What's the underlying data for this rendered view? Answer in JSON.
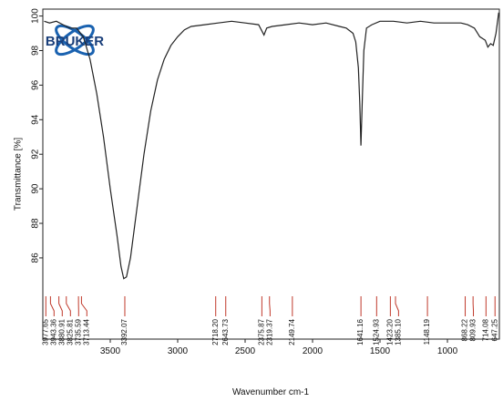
{
  "chart_data": {
    "type": "line",
    "logo": "BRUKER",
    "y_label": "Transmittance [%]",
    "x_label": "Wavenumber cm-1",
    "xlim": [
      4000,
      615
    ],
    "ylim": [
      81.3,
      100.4
    ],
    "xticks": [
      3500,
      3000,
      2500,
      2000,
      1500,
      1000
    ],
    "yticks": [
      86,
      88,
      90,
      92,
      94,
      96,
      98,
      100
    ],
    "x": [
      3990,
      3950,
      3900,
      3850,
      3800,
      3750,
      3700,
      3650,
      3600,
      3550,
      3500,
      3450,
      3420,
      3400,
      3380,
      3350,
      3300,
      3250,
      3200,
      3150,
      3100,
      3050,
      3000,
      2950,
      2900,
      2800,
      2700,
      2600,
      2500,
      2400,
      2360,
      2340,
      2300,
      2200,
      2100,
      2000,
      1900,
      1800,
      1750,
      1700,
      1680,
      1660,
      1650,
      1641,
      1630,
      1620,
      1600,
      1560,
      1500,
      1400,
      1300,
      1200,
      1100,
      1000,
      900,
      850,
      800,
      760,
      720,
      700,
      680,
      660,
      640,
      620
    ],
    "series": [
      {
        "color": "#222222",
        "values": [
          99.7,
          99.6,
          99.7,
          99.5,
          99.3,
          99.3,
          98.8,
          97.5,
          95.5,
          93,
          90,
          87.3,
          85.5,
          84.8,
          84.9,
          86,
          89,
          92,
          94.5,
          96.3,
          97.5,
          98.3,
          98.8,
          99.2,
          99.4,
          99.5,
          99.6,
          99.7,
          99.6,
          99.5,
          98.9,
          99.3,
          99.4,
          99.5,
          99.6,
          99.5,
          99.6,
          99.4,
          99.3,
          99.0,
          98.5,
          97,
          95,
          92.5,
          95.5,
          98,
          99.3,
          99.5,
          99.7,
          99.7,
          99.6,
          99.7,
          99.6,
          99.6,
          99.6,
          99.5,
          99.3,
          98.8,
          98.6,
          98.2,
          98.4,
          98.3,
          99,
          100.2
        ]
      }
    ],
    "peak_color": "#c0392b",
    "peaks": [
      3977.65,
      3943.36,
      3880.91,
      3825.81,
      3735.59,
      3713.44,
      3392.07,
      {
        "value": 2718.2,
        "label": "2718.20"
      },
      2643.73,
      2375.87,
      2319.37,
      2149.74,
      1641.16,
      1524.93,
      {
        "value": 1423.2,
        "label": "1423.20"
      },
      {
        "value": 1385.1,
        "label": "1385.10"
      },
      1148.19,
      868.22,
      809.93,
      714.08,
      647.25
    ]
  }
}
